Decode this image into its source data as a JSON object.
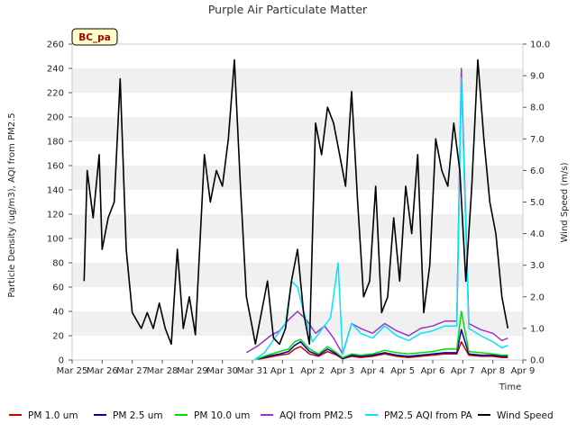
{
  "chart_data": {
    "type": "line",
    "title": "Purple Air Particulate Matter",
    "site_badge": "BC_pa",
    "xlabel": "Time",
    "ylabel_left": "Particle Density (ug/m3), AQI from PM2.5",
    "ylabel_right": "Wind Speed (m/s)",
    "ylim_left": [
      0,
      260
    ],
    "ylim_right": [
      0,
      10
    ],
    "xlim": [
      0,
      15
    ],
    "x_tick_labels": [
      "Mar 25",
      "Mar 26",
      "Mar 27",
      "Mar 28",
      "Mar 29",
      "Mar 30",
      "Mar 31",
      "Apr 1",
      "Apr 2",
      "Apr 3",
      "Apr 4",
      "Apr 5",
      "Apr 6",
      "Apr 7",
      "Apr 8",
      "Apr 9"
    ],
    "y_left_ticks": [
      0,
      20,
      40,
      60,
      80,
      100,
      120,
      140,
      160,
      180,
      200,
      220,
      240,
      260
    ],
    "y_right_ticks": [
      "0.0",
      "1.0",
      "2.0",
      "3.0",
      "4.0",
      "5.0",
      "6.0",
      "7.0",
      "8.0",
      "9.0",
      "10.0"
    ],
    "grid": "horizontal bands",
    "legend_position": "bottom",
    "series": [
      {
        "name": "PM 1.0 um",
        "color": "#cc0000",
        "axis": "left",
        "x": [
          6.05,
          6.5,
          6.9,
          7.2,
          7.4,
          7.6,
          7.9,
          8.2,
          8.5,
          8.8,
          9.0,
          9.3,
          9.6,
          10.0,
          10.4,
          10.8,
          11.2,
          11.6,
          12.0,
          12.4,
          12.8,
          12.95,
          13.2,
          13.6,
          14.0,
          14.3,
          14.5
        ],
        "y": [
          0,
          2,
          4,
          5,
          9,
          11,
          5,
          3,
          7,
          4,
          1,
          3,
          2,
          3,
          5,
          3,
          2,
          3,
          4,
          5,
          5,
          15,
          4,
          3,
          3,
          2,
          2
        ]
      },
      {
        "name": "PM 2.5 um",
        "color": "#0000aa",
        "axis": "left",
        "x": [
          6.05,
          6.5,
          6.9,
          7.2,
          7.4,
          7.6,
          7.9,
          8.2,
          8.5,
          8.8,
          9.0,
          9.3,
          9.6,
          10.0,
          10.4,
          10.8,
          11.2,
          11.6,
          12.0,
          12.4,
          12.8,
          12.95,
          13.2,
          13.6,
          14.0,
          14.3,
          14.5
        ],
        "y": [
          0,
          3,
          5,
          7,
          12,
          15,
          7,
          4,
          9,
          5,
          1,
          4,
          3,
          4,
          6,
          4,
          3,
          4,
          5,
          6,
          6,
          25,
          5,
          4,
          4,
          3,
          3
        ]
      },
      {
        "name": "PM 10.0 um",
        "color": "#00dd00",
        "axis": "left",
        "x": [
          6.05,
          6.5,
          6.9,
          7.2,
          7.4,
          7.6,
          7.9,
          8.2,
          8.5,
          8.8,
          9.0,
          9.3,
          9.6,
          10.0,
          10.4,
          10.8,
          11.2,
          11.6,
          12.0,
          12.4,
          12.8,
          12.95,
          13.2,
          13.6,
          14.0,
          14.3,
          14.5
        ],
        "y": [
          0,
          4,
          7,
          9,
          15,
          17,
          9,
          5,
          11,
          6,
          2,
          5,
          4,
          5,
          8,
          6,
          5,
          6,
          7,
          9,
          9,
          40,
          7,
          6,
          5,
          4,
          4
        ]
      },
      {
        "name": "AQI from PM2.5",
        "color": "#9933cc",
        "axis": "left",
        "x": [
          5.8,
          6.2,
          6.6,
          6.9,
          7.2,
          7.5,
          7.8,
          8.1,
          8.4,
          8.7,
          9.0,
          9.3,
          9.6,
          10.0,
          10.4,
          10.8,
          11.2,
          11.6,
          12.0,
          12.4,
          12.8,
          12.95,
          13.2,
          13.6,
          14.0,
          14.3,
          14.5
        ],
        "y": [
          6,
          12,
          20,
          24,
          33,
          40,
          33,
          22,
          28,
          18,
          5,
          30,
          26,
          22,
          30,
          24,
          20,
          26,
          28,
          32,
          32,
          240,
          30,
          25,
          22,
          16,
          18
        ]
      },
      {
        "name": "PM2.5 AQI from PA",
        "color": "#00e5ff",
        "axis": "left",
        "x": [
          6.05,
          6.4,
          6.8,
          7.1,
          7.3,
          7.5,
          7.7,
          8.0,
          8.3,
          8.6,
          8.85,
          9.0,
          9.3,
          9.6,
          10.0,
          10.4,
          10.8,
          11.2,
          11.6,
          12.0,
          12.4,
          12.8,
          12.95,
          13.2,
          13.6,
          14.0,
          14.3,
          14.5
        ],
        "y": [
          0,
          6,
          20,
          30,
          65,
          60,
          40,
          15,
          25,
          35,
          80,
          5,
          30,
          22,
          18,
          28,
          20,
          16,
          22,
          24,
          28,
          28,
          232,
          26,
          20,
          15,
          10,
          12
        ]
      },
      {
        "name": "Wind Speed",
        "color": "#000000",
        "axis": "right",
        "x": [
          0.4,
          0.5,
          0.7,
          0.9,
          1.0,
          1.2,
          1.4,
          1.6,
          1.8,
          2.0,
          2.3,
          2.5,
          2.7,
          2.9,
          3.1,
          3.3,
          3.5,
          3.7,
          3.9,
          4.1,
          4.4,
          4.6,
          4.8,
          5.0,
          5.2,
          5.4,
          5.6,
          5.8,
          6.0,
          6.1,
          6.3,
          6.5,
          6.7,
          6.9,
          7.1,
          7.3,
          7.5,
          7.7,
          7.9,
          8.1,
          8.3,
          8.5,
          8.7,
          8.9,
          9.1,
          9.3,
          9.5,
          9.7,
          9.9,
          10.1,
          10.3,
          10.5,
          10.7,
          10.9,
          11.1,
          11.3,
          11.5,
          11.7,
          11.9,
          12.1,
          12.3,
          12.5,
          12.7,
          12.9,
          13.1,
          13.3,
          13.5,
          13.7,
          13.9,
          14.1,
          14.3,
          14.5
        ],
        "y": [
          2.5,
          6.0,
          4.5,
          6.5,
          3.5,
          4.5,
          5.0,
          8.9,
          3.5,
          1.5,
          1.0,
          1.5,
          1.0,
          1.8,
          1.0,
          0.5,
          3.5,
          1.0,
          2.0,
          0.8,
          6.5,
          5.0,
          6.0,
          5.5,
          7.0,
          9.5,
          5.5,
          2.0,
          1.0,
          0.5,
          1.5,
          2.5,
          0.7,
          0.5,
          1.0,
          2.5,
          3.5,
          1.5,
          0.5,
          7.5,
          6.5,
          8.0,
          7.5,
          6.5,
          5.5,
          8.5,
          5.0,
          2.0,
          2.5,
          5.5,
          1.5,
          2.0,
          4.5,
          2.5,
          5.5,
          4.0,
          6.5,
          1.5,
          3.0,
          7.0,
          6.0,
          5.5,
          7.5,
          6.0,
          2.5,
          5.5,
          9.5,
          7.0,
          5.0,
          4.0,
          2.0,
          1.0
        ]
      }
    ]
  }
}
